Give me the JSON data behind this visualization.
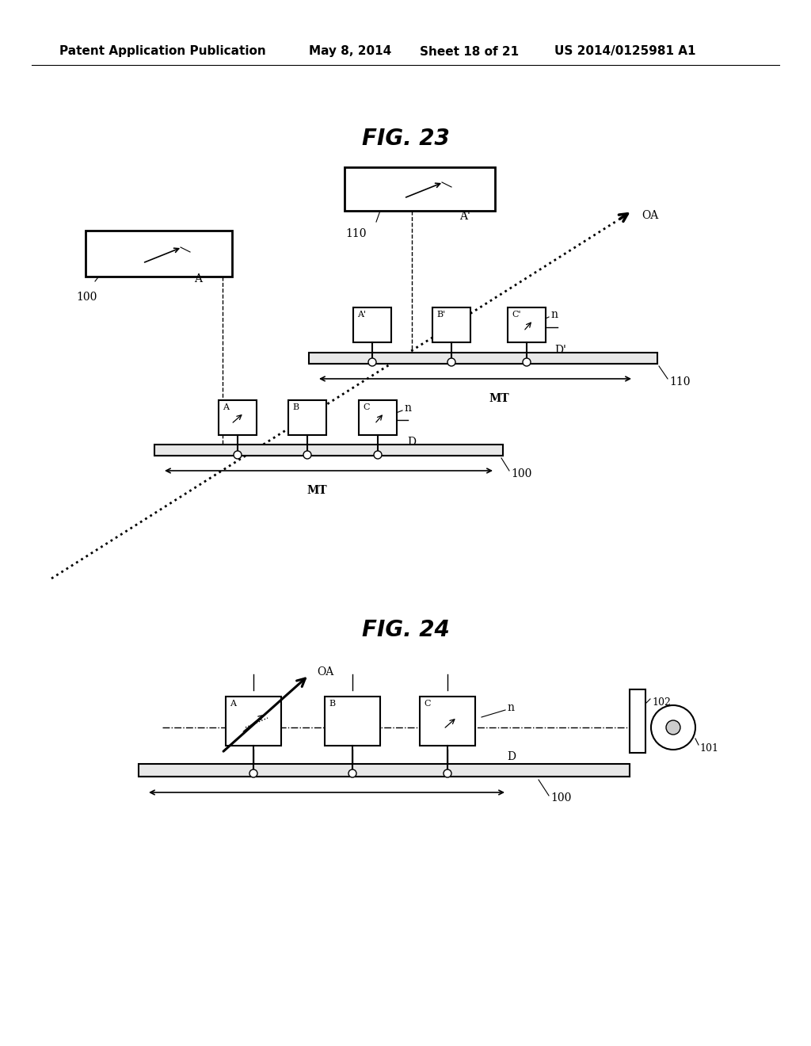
{
  "bg_color": "#ffffff",
  "header_text": "Patent Application Publication",
  "header_date": "May 8, 2014",
  "header_sheet": "Sheet 18 of 21",
  "header_patent": "US 2014/0125981 A1",
  "fig23_title": "FIG. 23",
  "fig24_title": "FIG. 24",
  "text_color": "#000000",
  "fig_title_fontsize": 20,
  "header_fontsize": 11
}
